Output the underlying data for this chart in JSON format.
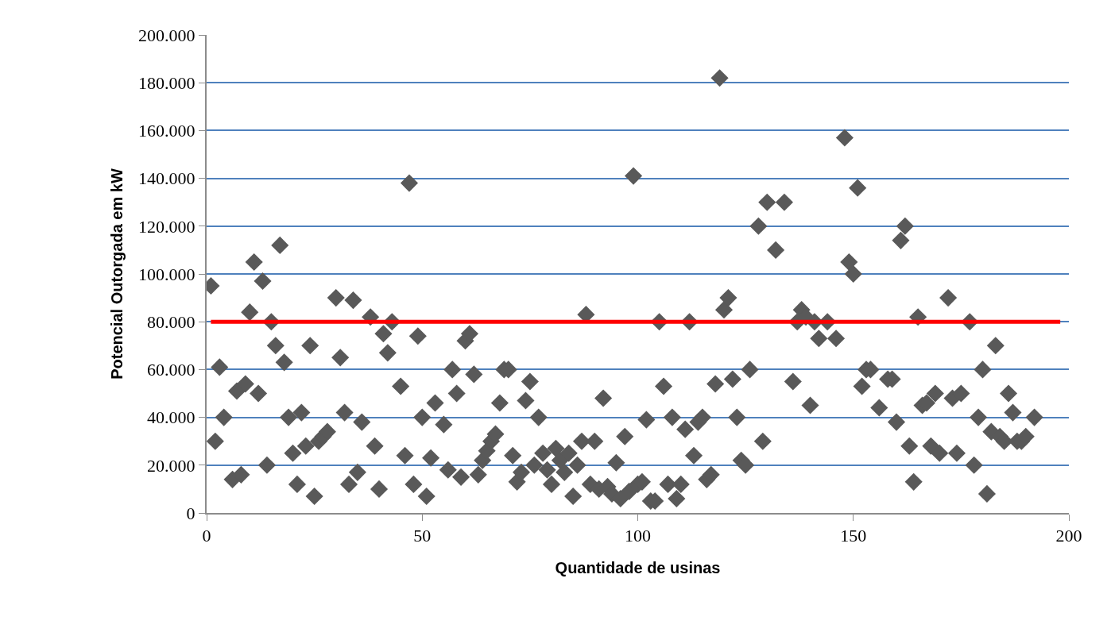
{
  "chart_data": {
    "type": "scatter",
    "xlabel": "Quantidade de usinas",
    "ylabel": "Potencial Outorgada em kW",
    "xlim": [
      0,
      200
    ],
    "xticks": [
      0,
      50,
      100,
      150,
      200
    ],
    "ylim": [
      0,
      200000
    ],
    "yticks": [
      {
        "value": 0,
        "label": "0"
      },
      {
        "value": 20000,
        "label": "20.000"
      },
      {
        "value": 40000,
        "label": "40.000"
      },
      {
        "value": 60000,
        "label": "60.000"
      },
      {
        "value": 80000,
        "label": "80.000"
      },
      {
        "value": 100000,
        "label": "100.000"
      },
      {
        "value": 120000,
        "label": "120.000"
      },
      {
        "value": 140000,
        "label": "140.000"
      },
      {
        "value": 160000,
        "label": "160.000"
      },
      {
        "value": 180000,
        "label": "180.000"
      },
      {
        "value": 200000,
        "label": "200.000"
      }
    ],
    "grid": "y",
    "marker": "diamond",
    "ref_lines": [
      {
        "axis": "y",
        "value": 80000,
        "color": "#ff0000"
      }
    ],
    "series": [
      {
        "color": "#595959",
        "x": [
          1,
          2,
          3,
          4,
          6,
          8,
          7,
          9,
          10,
          11,
          12,
          13,
          14,
          15,
          16,
          17,
          18,
          19,
          20,
          21,
          22,
          23,
          24,
          25,
          26,
          27,
          28,
          30,
          31,
          32,
          33,
          34,
          35,
          36,
          38,
          39,
          40,
          41,
          42,
          43,
          45,
          46,
          47,
          48,
          49,
          50,
          51,
          52,
          53,
          55,
          56,
          57,
          58,
          59,
          60,
          61,
          62,
          63,
          64,
          65,
          66,
          67,
          68,
          69,
          70,
          71,
          72,
          73,
          74,
          75,
          76,
          77,
          78,
          79,
          80,
          81,
          82,
          83,
          84,
          85,
          86,
          87,
          88,
          89,
          90,
          91,
          92,
          93,
          94,
          95,
          96,
          97,
          98,
          99,
          100,
          101,
          102,
          103,
          104,
          105,
          106,
          107,
          108,
          109,
          110,
          111,
          112,
          113,
          114,
          115,
          116,
          117,
          118,
          119,
          120,
          121,
          122,
          123,
          124,
          125,
          126,
          128,
          129,
          130,
          132,
          134,
          136,
          137,
          138,
          139,
          140,
          141,
          142,
          144,
          146,
          148,
          149,
          150,
          151,
          152,
          153,
          154,
          156,
          158,
          159,
          160,
          161,
          162,
          163,
          164,
          165,
          166,
          167,
          168,
          169,
          170,
          172,
          173,
          174,
          175,
          177,
          178,
          179,
          180,
          181,
          182,
          183,
          184,
          185,
          186,
          187,
          188,
          189,
          190,
          192
        ],
        "values": [
          95000,
          30000,
          61000,
          40000,
          14000,
          16000,
          51000,
          54000,
          84000,
          105000,
          50000,
          97000,
          20000,
          80000,
          70000,
          112000,
          63000,
          40000,
          25000,
          12000,
          42000,
          28000,
          70000,
          7000,
          30000,
          32000,
          34000,
          90000,
          65000,
          42000,
          12000,
          89000,
          17000,
          38000,
          82000,
          28000,
          10000,
          75000,
          67000,
          80000,
          53000,
          24000,
          138000,
          12000,
          74000,
          40000,
          7000,
          23000,
          46000,
          37000,
          18000,
          60000,
          50000,
          15000,
          72000,
          75000,
          58000,
          16000,
          22000,
          26000,
          30000,
          33000,
          46000,
          60000,
          60000,
          24000,
          13000,
          17000,
          47000,
          55000,
          20000,
          40000,
          25000,
          18000,
          12000,
          27000,
          22000,
          17000,
          25000,
          7000,
          20000,
          30000,
          83000,
          12000,
          30000,
          10000,
          48000,
          11000,
          8000,
          21000,
          6000,
          32000,
          9000,
          141000,
          12000,
          13000,
          39000,
          5000,
          5000,
          80000,
          53000,
          12000,
          40000,
          6000,
          12000,
          35000,
          80000,
          24000,
          38000,
          40000,
          14000,
          16000,
          54000,
          182000,
          85000,
          90000,
          56000,
          40000,
          22000,
          20000,
          60000,
          120000,
          30000,
          130000,
          110000,
          130000,
          55000,
          80000,
          85000,
          82000,
          45000,
          80000,
          73000,
          80000,
          73000,
          157000,
          105000,
          100000,
          136000,
          53000,
          60000,
          60000,
          44000,
          56000,
          56000,
          38000,
          114000,
          120000,
          28000,
          13000,
          82000,
          45000,
          46000,
          28000,
          50000,
          25000,
          90000,
          48000,
          25000,
          50000,
          80000,
          20000,
          40000,
          60000,
          8000,
          34000,
          70000,
          32000,
          30000,
          50000,
          42000,
          30000,
          30000,
          32000,
          40000
        ]
      }
    ]
  }
}
